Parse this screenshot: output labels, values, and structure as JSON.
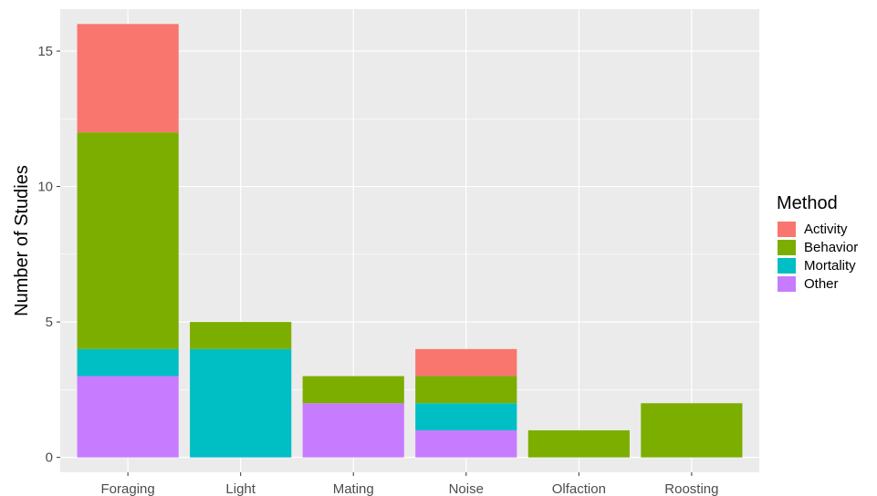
{
  "chart_data": {
    "type": "bar",
    "stacked": true,
    "categories": [
      "Foraging",
      "Light",
      "Mating",
      "Noise",
      "Olfaction",
      "Roosting"
    ],
    "series": [
      {
        "name": "Other",
        "color": "#C77CFF",
        "values": [
          3,
          0,
          2,
          1,
          0,
          0
        ]
      },
      {
        "name": "Mortality",
        "color": "#00BFC4",
        "values": [
          1,
          4,
          0,
          1,
          0,
          0
        ]
      },
      {
        "name": "Behavior",
        "color": "#7CAE00",
        "values": [
          8,
          1,
          1,
          1,
          1,
          2
        ]
      },
      {
        "name": "Activity",
        "color": "#F8766D",
        "values": [
          4,
          0,
          0,
          1,
          0,
          0
        ]
      }
    ],
    "xlabel": "",
    "ylabel": "Number of Studies",
    "ylim": [
      -0.55,
      16.55
    ],
    "yticks": [
      0,
      5,
      10,
      15
    ],
    "grid": true,
    "panel_background": "#EBEBEB",
    "legend": {
      "title": "Method",
      "position": "right",
      "entries": [
        "Activity",
        "Behavior",
        "Mortality",
        "Other"
      ]
    }
  }
}
